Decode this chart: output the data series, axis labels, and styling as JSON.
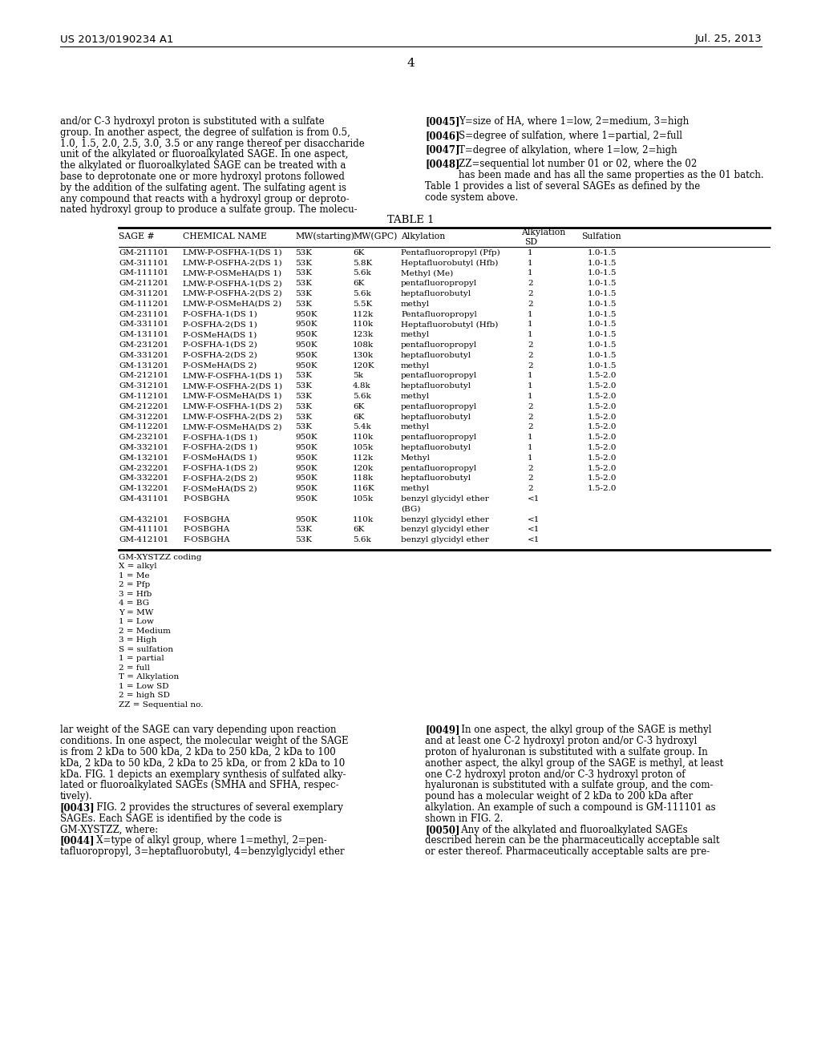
{
  "page_number": "4",
  "header_left": "US 2013/0190234 A1",
  "header_right": "Jul. 25, 2013",
  "bg_color": "#ffffff",
  "left_column_text": [
    "and/or C-3 hydroxyl proton is substituted with a sulfate",
    "group. In another aspect, the degree of sulfation is from 0.5,",
    "1.0, 1.5, 2.0, 2.5, 3.0, 3.5 or any range thereof per disaccharide",
    "unit of the alkylated or fluoroalkylated SAGE. In one aspect,",
    "the alkylated or fluoroalkylated SAGE can be treated with a",
    "base to deprotonate one or more hydroxyl protons followed",
    "by the addition of the sulfating agent. The sulfating agent is",
    "any compound that reacts with a hydroxyl group or deproto-",
    "nated hydroxyl group to produce a sulfate group. The molecu-"
  ],
  "right_col_refs": [
    {
      "tag": "[0045]",
      "text": "Y=size of HA, where 1=low, 2=medium, 3=high"
    },
    {
      "tag": "[0046]",
      "text": "S=degree of sulfation, where 1=partial, 2=full"
    },
    {
      "tag": "[0047]",
      "text": "T=degree of alkylation, where 1=low, 2=high"
    },
    {
      "tag": "[0048]",
      "text": "ZZ=sequential lot number 01 or 02, where the 02",
      "text2": "has been made and has all the same properties as the 01 batch."
    }
  ],
  "table_intro_line1": "Table 1 provides a list of several SAGEs as defined by the",
  "table_intro_line2": "code system above.",
  "table_title": "TABLE 1",
  "col_headers": [
    "SAGE #",
    "CHEMICAL NAME",
    "MW(starting)",
    "MW(GPC)",
    "Alkylation",
    "Alkylation",
    "SD",
    "Sulfation"
  ],
  "table_rows": [
    [
      "GM-211101",
      "LMW-P-OSFHA-1(DS 1)",
      "53K",
      "6K",
      "Pentafluoropropyl (Pfp)",
      "1",
      "1.0-1.5"
    ],
    [
      "GM-311101",
      "LMW-P-OSFHA-2(DS 1)",
      "53K",
      "5.8K",
      "Heptafluorobutyl (Hfb)",
      "1",
      "1.0-1.5"
    ],
    [
      "GM-111101",
      "LMW-P-OSMeHA(DS 1)",
      "53K",
      "5.6k",
      "Methyl (Me)",
      "1",
      "1.0-1.5"
    ],
    [
      "GM-211201",
      "LMW-P-OSFHA-1(DS 2)",
      "53K",
      "6K",
      "pentafluoropropyl",
      "2",
      "1.0-1.5"
    ],
    [
      "GM-311201",
      "LMW-P-OSFHA-2(DS 2)",
      "53K",
      "5.6k",
      "heptafluorobutyl",
      "2",
      "1.0-1.5"
    ],
    [
      "GM-111201",
      "LMW-P-OSMeHA(DS 2)",
      "53K",
      "5.5K",
      "methyl",
      "2",
      "1.0-1.5"
    ],
    [
      "GM-231101",
      "P-OSFHA-1(DS 1)",
      "950K",
      "112k",
      "Pentafluoropropyl",
      "1",
      "1.0-1.5"
    ],
    [
      "GM-331101",
      "P-OSFHA-2(DS 1)",
      "950K",
      "110k",
      "Heptafluorobutyl (Hfb)",
      "1",
      "1.0-1.5"
    ],
    [
      "GM-131101",
      "P-OSMeHA(DS 1)",
      "950K",
      "123k",
      "methyl",
      "1",
      "1.0-1.5"
    ],
    [
      "GM-231201",
      "P-OSFHA-1(DS 2)",
      "950K",
      "108k",
      "pentafluoropropyl",
      "2",
      "1.0-1.5"
    ],
    [
      "GM-331201",
      "P-OSFHA-2(DS 2)",
      "950K",
      "130k",
      "heptafluorobutyl",
      "2",
      "1.0-1.5"
    ],
    [
      "GM-131201",
      "P-OSMeHA(DS 2)",
      "950K",
      "120K",
      "methyl",
      "2",
      "1.0-1.5"
    ],
    [
      "GM-212101",
      "LMW-F-OSFHA-1(DS 1)",
      "53K",
      "5k",
      "pentafluoropropyl",
      "1",
      "1.5-2.0"
    ],
    [
      "GM-312101",
      "LMW-F-OSFHA-2(DS 1)",
      "53K",
      "4.8k",
      "heptafluorobutyl",
      "1",
      "1.5-2.0"
    ],
    [
      "GM-112101",
      "LMW-F-OSMeHA(DS 1)",
      "53K",
      "5.6k",
      "methyl",
      "1",
      "1.5-2.0"
    ],
    [
      "GM-212201",
      "LMW-F-OSFHA-1(DS 2)",
      "53K",
      "6K",
      "pentafluoropropyl",
      "2",
      "1.5-2.0"
    ],
    [
      "GM-312201",
      "LMW-F-OSFHA-2(DS 2)",
      "53K",
      "6K",
      "heptafluorobutyl",
      "2",
      "1.5-2.0"
    ],
    [
      "GM-112201",
      "LMW-F-OSMeHA(DS 2)",
      "53K",
      "5.4k",
      "methyl",
      "2",
      "1.5-2.0"
    ],
    [
      "GM-232101",
      "F-OSFHA-1(DS 1)",
      "950K",
      "110k",
      "pentafluoropropyl",
      "1",
      "1.5-2.0"
    ],
    [
      "GM-332101",
      "F-OSFHA-2(DS 1)",
      "950K",
      "105k",
      "heptafluorobutyl",
      "1",
      "1.5-2.0"
    ],
    [
      "GM-132101",
      "F-OSMeHA(DS 1)",
      "950K",
      "112k",
      "Methyl",
      "1",
      "1.5-2.0"
    ],
    [
      "GM-232201",
      "F-OSFHA-1(DS 2)",
      "950K",
      "120k",
      "pentafluoropropyl",
      "2",
      "1.5-2.0"
    ],
    [
      "GM-332201",
      "F-OSFHA-2(DS 2)",
      "950K",
      "118k",
      "heptafluorobutyl",
      "2",
      "1.5-2.0"
    ],
    [
      "GM-132201",
      "F-OSMeHA(DS 2)",
      "950K",
      "116K",
      "methyl",
      "2",
      "1.5-2.0"
    ],
    [
      "GM-431101",
      "P-OSBGHA",
      "950K",
      "105k",
      "benzyl glycidyl ether",
      "<1",
      "",
      true
    ],
    [
      "GM-432101",
      "F-OSBGHA",
      "950K",
      "110k",
      "benzyl glycidyl ether",
      "<1",
      "",
      false
    ],
    [
      "GM-411101",
      "P-OSBGHA",
      "53K",
      "6K",
      "benzyl glycidyl ether",
      "<1",
      "",
      false
    ],
    [
      "GM-412101",
      "F-OSBGHA",
      "53K",
      "5.6k",
      "benzyl glycidyl ether",
      "<1",
      "",
      false
    ]
  ],
  "coding_lines": [
    "GM-XYSTZZ coding",
    "X = alkyl",
    "1 = Me",
    "2 = Pfp",
    "3 = Hfb",
    "4 = BG",
    "Y = MW",
    "1 = Low",
    "2 = Medium",
    "3 = High",
    "S = sulfation",
    "1 = partial",
    "2 = full",
    "T = Alkylation",
    "1 = Low SD",
    "2 = high SD",
    "ZZ = Sequential no."
  ],
  "bottom_left": [
    [
      "",
      "lar weight of the SAGE can vary depending upon reaction"
    ],
    [
      "",
      "conditions. In one aspect, the molecular weight of the SAGE"
    ],
    [
      "",
      "is from 2 kDa to 500 kDa, 2 kDa to 250 kDa, 2 kDa to 100"
    ],
    [
      "",
      "kDa, 2 kDa to 50 kDa, 2 kDa to 25 kDa, or from 2 kDa to 10"
    ],
    [
      "",
      "kDa. FIG. 1 depicts an exemplary synthesis of sulfated alky-"
    ],
    [
      "",
      "lated or fluoroalkylated SAGEs (SMHA and SFHA, respec-"
    ],
    [
      "",
      "tively)."
    ],
    [
      "[0043]",
      "   FIG. 2 provides the structures of several exemplary"
    ],
    [
      "",
      "SAGEs. Each SAGE is identified by the code is"
    ],
    [
      "",
      "GM-XYSTZZ, where:"
    ],
    [
      "[0044]",
      "   X=type of alkyl group, where 1=methyl, 2=pen-"
    ],
    [
      "",
      "tafluoropropyl, 3=heptafluorobutyl, 4=benzylglycidyl ether"
    ]
  ],
  "bottom_right": [
    [
      "[0049]",
      "   In one aspect, the alkyl group of the SAGE is methyl"
    ],
    [
      "",
      "and at least one C-2 hydroxyl proton and/or C-3 hydroxyl"
    ],
    [
      "",
      "proton of hyaluronan is substituted with a sulfate group. In"
    ],
    [
      "",
      "another aspect, the alkyl group of the SAGE is methyl, at least"
    ],
    [
      "",
      "one C-2 hydroxyl proton and/or C-3 hydroxyl proton of"
    ],
    [
      "",
      "hyaluronan is substituted with a sulfate group, and the com-"
    ],
    [
      "",
      "pound has a molecular weight of 2 kDa to 200 kDa after"
    ],
    [
      "",
      "alkylation. An example of such a compound is GM-111101 as"
    ],
    [
      "",
      "shown in FIG. 2."
    ],
    [
      "[0050]",
      "   Any of the alkylated and fluoroalkylated SAGEs"
    ],
    [
      "",
      "described herein can be the pharmaceutically acceptable salt"
    ],
    [
      "",
      "or ester thereof. Pharmaceutically acceptable salts are pre-"
    ]
  ]
}
